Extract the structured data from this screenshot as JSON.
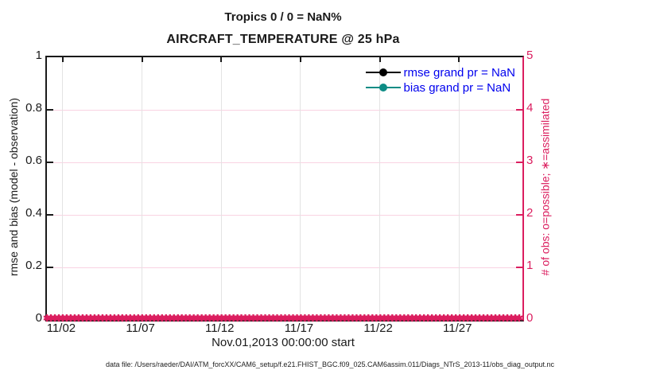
{
  "chart_data": {
    "type": "line",
    "title": "Tropics 0 / 0 = NaN%",
    "subtitle": "AIRCRAFT_TEMPERATURE @ 25 hPa",
    "xlabel": "Nov.01,2013 00:00:00 start",
    "x_tick_labels": [
      "11/02",
      "11/07",
      "11/12",
      "11/17",
      "11/22",
      "11/27"
    ],
    "x_tick_days": [
      1,
      6,
      11,
      16,
      21,
      26
    ],
    "x_range_days": [
      0,
      30
    ],
    "left_axis": {
      "label": "rmse and bias (model - observation)",
      "lim": [
        0,
        1
      ],
      "ticks": [
        0,
        0.2,
        0.4,
        0.6,
        0.8,
        1
      ],
      "tick_labels": [
        "0",
        "0.2",
        "0.4",
        "0.6",
        "0.8",
        "1"
      ],
      "color": "#1a1a1a"
    },
    "right_axis": {
      "label": "# of obs: o=possible; ∗=assimilated",
      "lim": [
        0,
        5
      ],
      "ticks": [
        0,
        1,
        2,
        3,
        4,
        5
      ],
      "tick_labels": [
        "0",
        "1",
        "2",
        "3",
        "4",
        "5"
      ],
      "color": "#db1e5f"
    },
    "series": [
      {
        "name": "rmse",
        "legend": "rmse grand pr = NaN",
        "color": "#000000",
        "marker": "point",
        "grand_pr": "NaN",
        "values": []
      },
      {
        "name": "bias",
        "legend": "bias grand pr = NaN",
        "color": "#0d8c85",
        "marker": "point",
        "grand_pr": "NaN",
        "values": []
      },
      {
        "name": "obs_counts",
        "axis": "right",
        "color": "#db1e5f",
        "marker": "asterisk",
        "marker_char": "✱",
        "value_at_all_times": 0,
        "n_markers": 120
      }
    ],
    "legend": {
      "position": "top-right",
      "text_color": "#0000ee",
      "entries": [
        {
          "label": "rmse grand pr = NaN",
          "color": "#000000"
        },
        {
          "label": "bias grand pr = NaN",
          "color": "#0d8c85"
        }
      ]
    },
    "grid": {
      "vertical_color": "#e3e3e3",
      "horizontal_color": "#f9d3e2"
    }
  },
  "footer": {
    "text": "data file: /Users/raeder/DAI/ATM_forcXX/CAM6_setup/f.e21.FHIST_BGC.f09_025.CAM6assim.011/Diags_NTrS_2013-11/obs_diag_output.nc"
  }
}
